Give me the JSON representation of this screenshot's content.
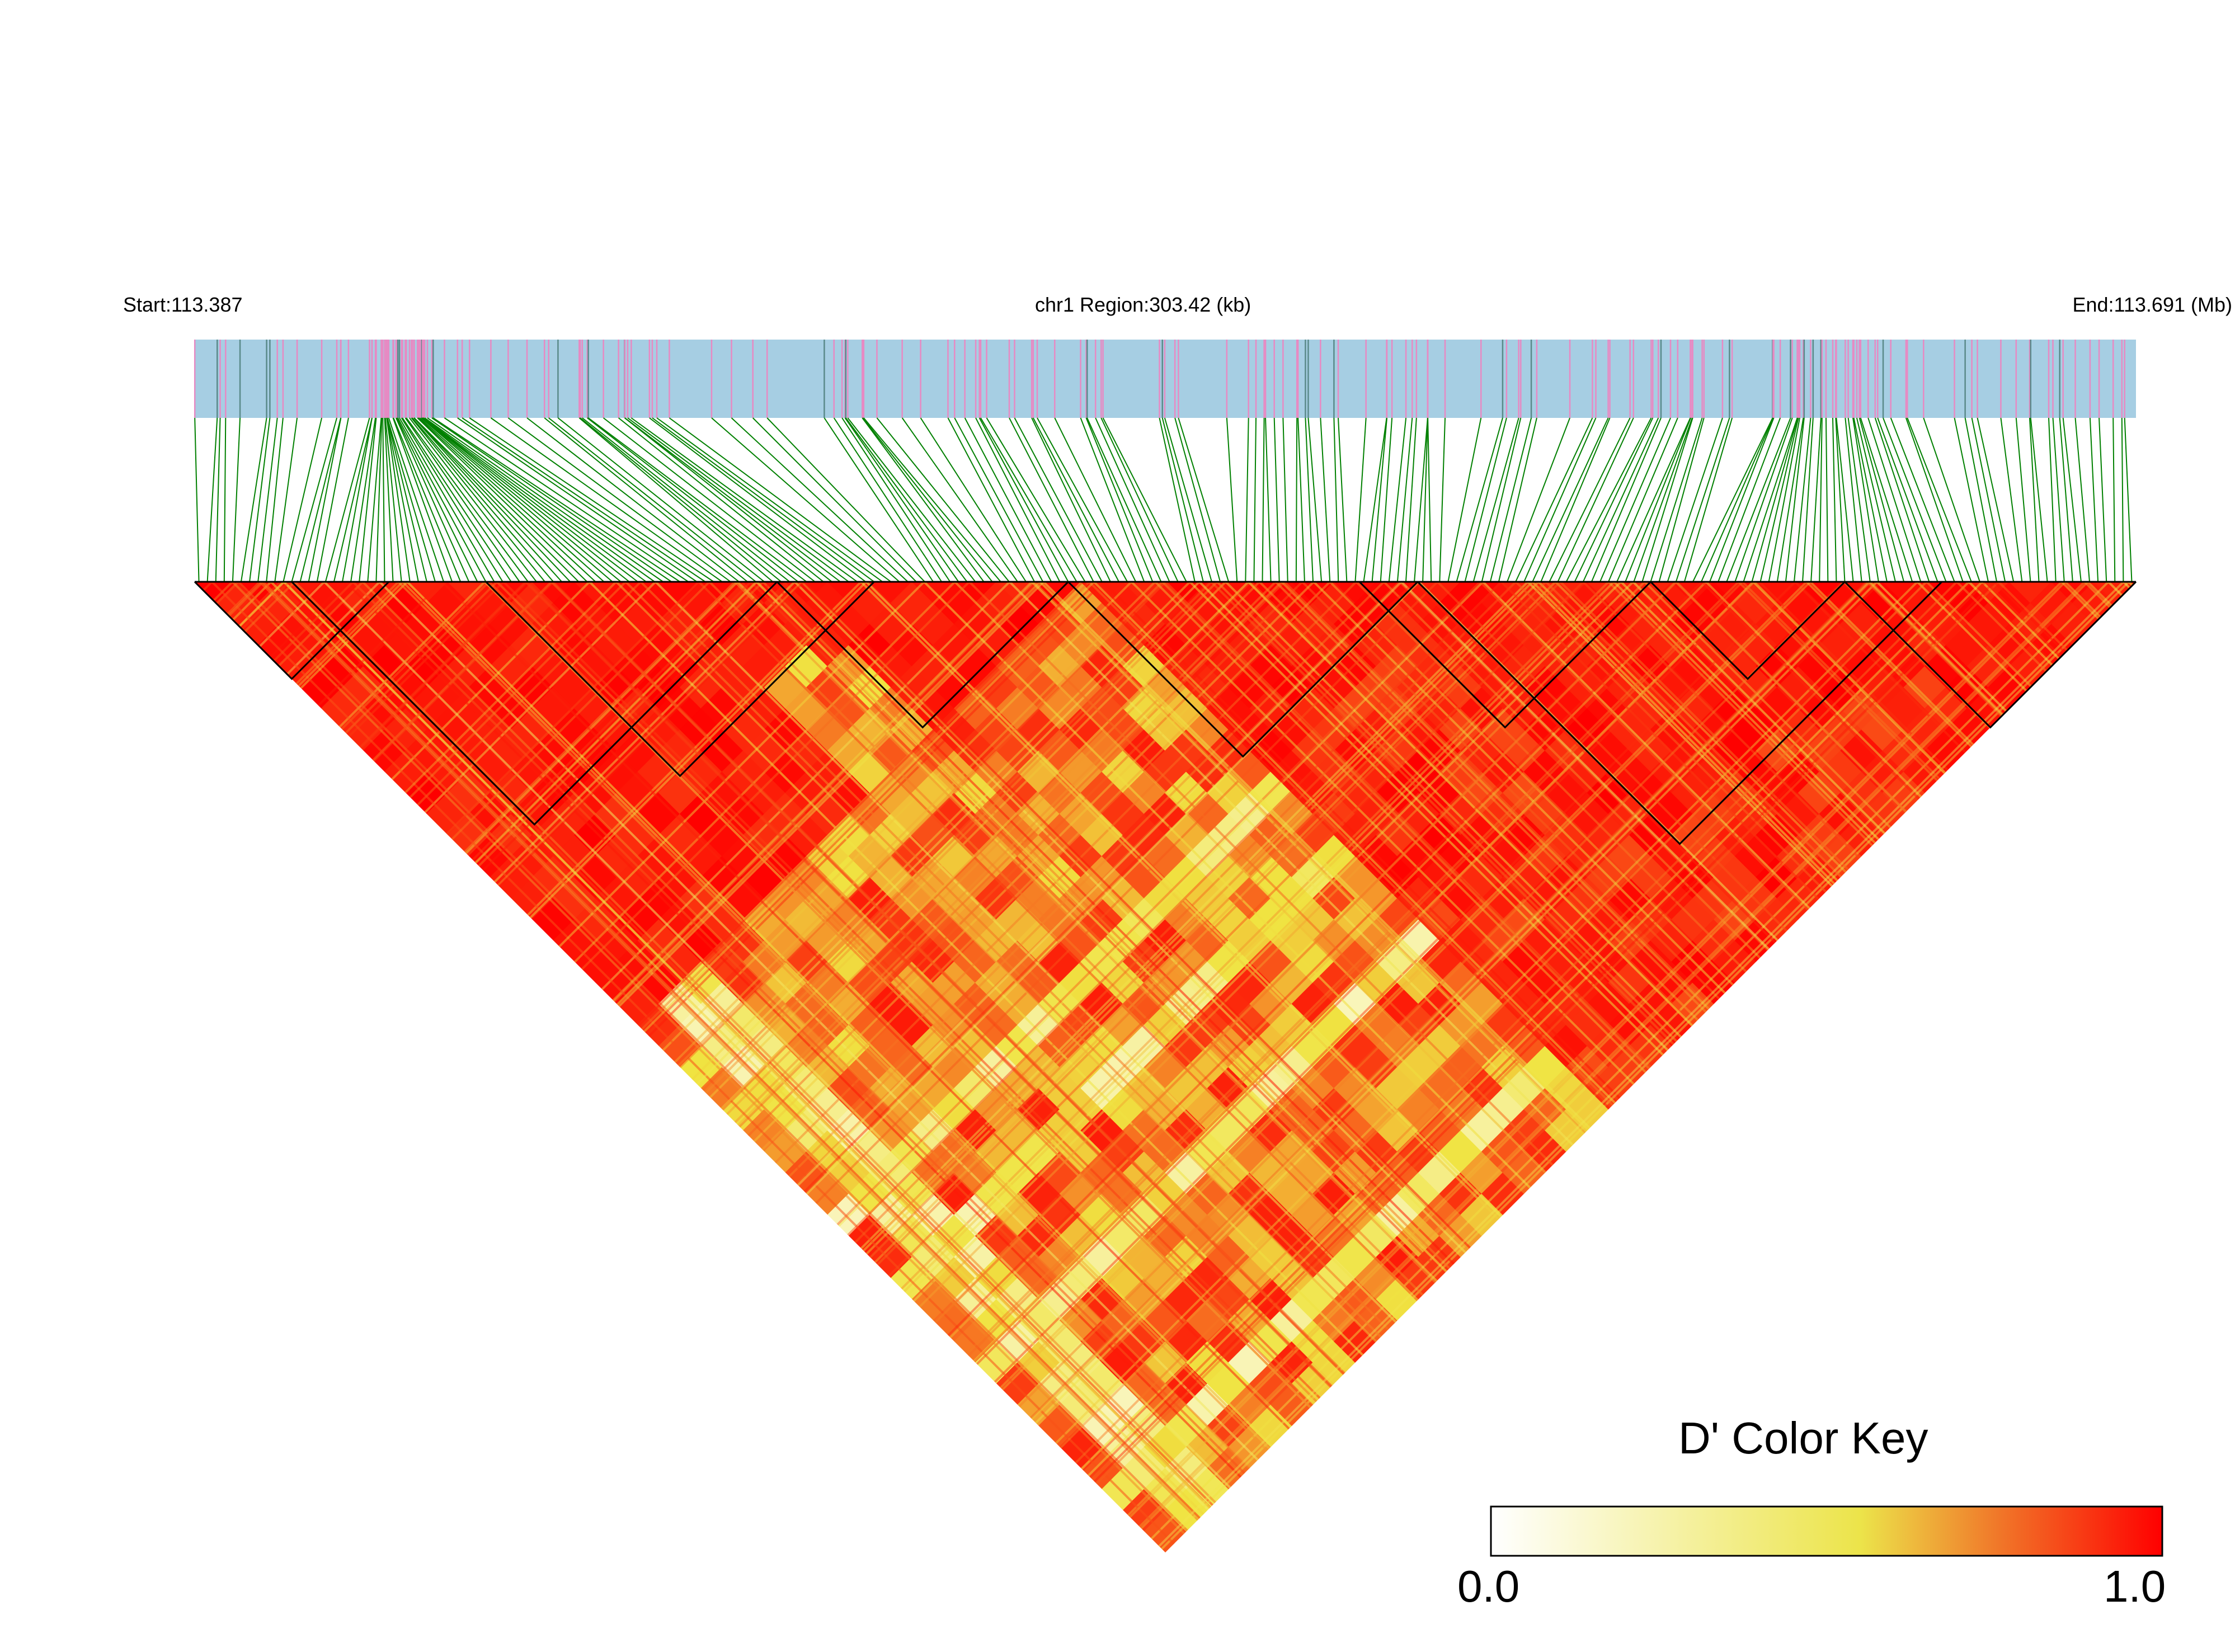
{
  "header": {
    "start_label": "Start:113.387",
    "region_label": "chr1 Region:303.42 (kb)",
    "end_label": "End:113.691 (Mb)"
  },
  "color_key": {
    "title": "D' Color Key",
    "min_label": "0.0",
    "max_label": "1.0",
    "colors": [
      "#ffffff",
      "#f0e442",
      "#ff0000"
    ]
  },
  "chart_data": {
    "type": "heatmap",
    "variant": "LD triangle (D')",
    "chromosome": "chr1",
    "start_mb": 113.387,
    "end_mb": 113.691,
    "region_kb": 303.42,
    "value_range": [
      0,
      1
    ],
    "track_colors": {
      "snp_bar_bg": "#a6cee3",
      "snp_tick": "#e78ac3",
      "connector": "#008000",
      "block_outline": "#000000"
    },
    "ld_blocks_fraction_of_region": [
      [
        0.0,
        0.1
      ],
      [
        0.05,
        0.3
      ],
      [
        0.15,
        0.35
      ],
      [
        0.3,
        0.45
      ],
      [
        0.45,
        0.63
      ],
      [
        0.6,
        0.75
      ],
      [
        0.75,
        0.85
      ],
      [
        0.85,
        1.0
      ],
      [
        0.63,
        0.9
      ]
    ]
  }
}
